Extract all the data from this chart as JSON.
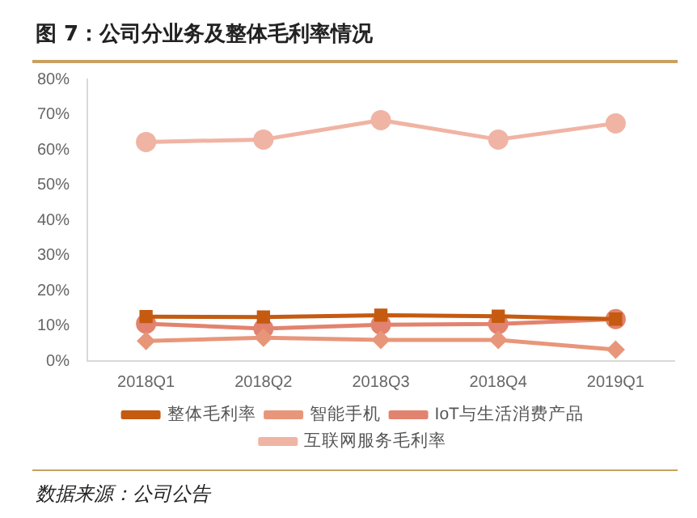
{
  "chart_data": {
    "type": "line",
    "title": "图 7：公司分业务及整体毛利率情况",
    "categories": [
      "2018Q1",
      "2018Q2",
      "2018Q3",
      "2018Q4",
      "2019Q1"
    ],
    "series": [
      {
        "name": "整体毛利率",
        "color": "#c55a11",
        "marker": "square",
        "values": [
          12.6,
          12.5,
          13.0,
          12.7,
          11.9
        ]
      },
      {
        "name": "智能手机",
        "color": "#e8967a",
        "marker": "diamond",
        "values": [
          5.7,
          6.6,
          6.0,
          6.0,
          3.2
        ]
      },
      {
        "name": "IoT与生活消费产品",
        "color": "#e2836f",
        "marker": "circle",
        "values": [
          10.6,
          9.2,
          10.3,
          10.5,
          11.9
        ]
      },
      {
        "name": "互联网服务毛利率",
        "color": "#f0b4a4",
        "marker": "circle",
        "values": [
          62.2,
          62.9,
          68.4,
          62.9,
          67.5
        ]
      }
    ],
    "ylim": [
      0,
      80
    ],
    "yticks": [
      {
        "value": 0,
        "label": "0%"
      },
      {
        "value": 10,
        "label": "10%"
      },
      {
        "value": 20,
        "label": "20%"
      },
      {
        "value": 30,
        "label": "30%"
      },
      {
        "value": 40,
        "label": "40%"
      },
      {
        "value": 50,
        "label": "50%"
      },
      {
        "value": 60,
        "label": "60%"
      },
      {
        "value": 70,
        "label": "70%"
      },
      {
        "value": 80,
        "label": "80%"
      }
    ],
    "grid": false,
    "legend": "bottom",
    "annotations": [
      "数据来源：公司公告"
    ]
  }
}
